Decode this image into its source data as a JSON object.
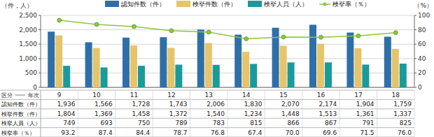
{
  "chart_data": {
    "type": "bar",
    "ylabel": "（件，人）",
    "y2label": "（%）",
    "xlabel": "年次",
    "table_corner": "区分",
    "categories": [
      "9",
      "10",
      "11",
      "12",
      "13",
      "14",
      "15",
      "16",
      "17",
      "18"
    ],
    "series": [
      {
        "name": "認知件数（件）",
        "color": "#2f6fa8",
        "values": [
          1936,
          1566,
          1728,
          1743,
          2006,
          1830,
          2070,
          2174,
          1904,
          1759
        ],
        "value_labels": [
          "1,936",
          "1,566",
          "1,728",
          "1,743",
          "2,006",
          "1,830",
          "2,070",
          "2,174",
          "1,904",
          "1,759"
        ]
      },
      {
        "name": "検挙件数（件）",
        "color": "#e6c46a",
        "values": [
          1804,
          1369,
          1458,
          1372,
          1540,
          1234,
          1448,
          1513,
          1361,
          1337
        ],
        "value_labels": [
          "1,804",
          "1,369",
          "1,458",
          "1,372",
          "1,540",
          "1,234",
          "1,448",
          "1,513",
          "1,361",
          "1,337"
        ]
      },
      {
        "name": "検挙人員（人）",
        "color": "#1b9a9c",
        "values": [
          749,
          693,
          750,
          789,
          783,
          815,
          866,
          867,
          791,
          825
        ],
        "value_labels": [
          "749",
          "693",
          "750",
          "789",
          "783",
          "815",
          "866",
          "867",
          "791",
          "825"
        ]
      },
      {
        "name": "検挙率（％）",
        "color": "#8cc63f",
        "type": "line",
        "marker": "circle",
        "axis": "y2",
        "values": [
          93.2,
          87.4,
          84.4,
          78.7,
          76.8,
          67.4,
          70.0,
          69.6,
          71.5,
          76.0
        ],
        "value_labels": [
          "93.2",
          "87.4",
          "84.4",
          "78.7",
          "76.8",
          "67.4",
          "70.0",
          "69.6",
          "71.5",
          "76.0"
        ]
      }
    ],
    "ylim": [
      0,
      2500
    ],
    "yticks": [
      0,
      500,
      {
        "value": 1000,
        "label": "1,000"
      },
      {
        "value": 1500,
        "label": "1,500"
      },
      {
        "value": 2000,
        "label": "2,000"
      },
      {
        "value": 2500,
        "label": "2,500"
      }
    ],
    "y2lim": [
      0,
      100
    ],
    "y2ticks": [
      0,
      20,
      40,
      60,
      80,
      100
    ],
    "grid": true,
    "legend": "top"
  }
}
